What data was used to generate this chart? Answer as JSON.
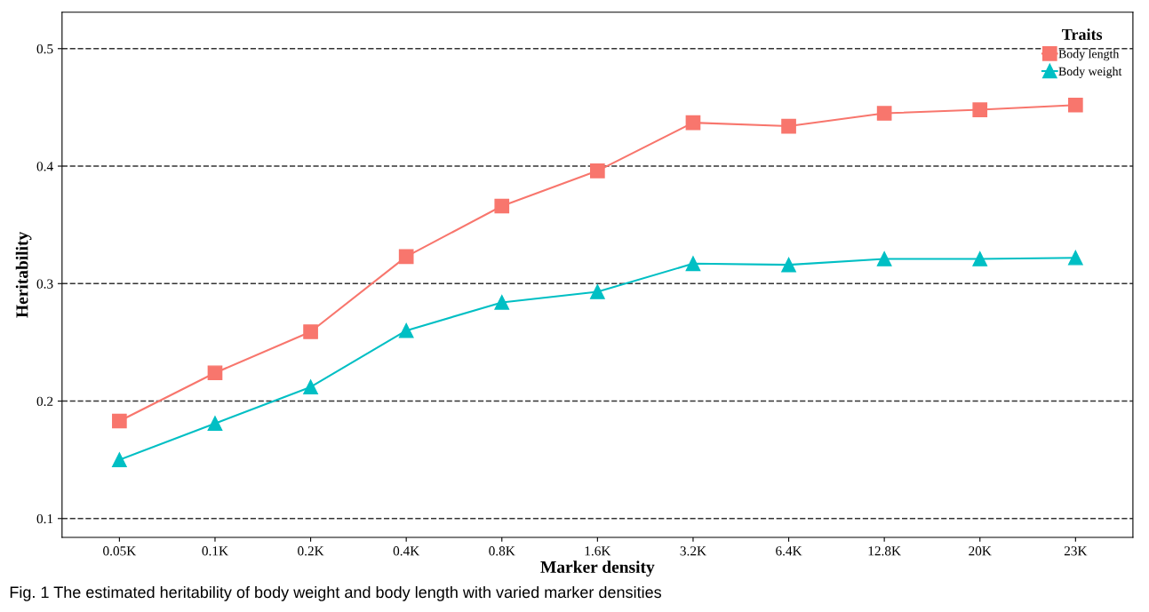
{
  "chart_data": {
    "type": "line",
    "xlabel": "Marker density",
    "ylabel": "Heritability",
    "legend_title": "Traits",
    "categories": [
      "0.05K",
      "0.1K",
      "0.2K",
      "0.4K",
      "0.8K",
      "1.6K",
      "3.2K",
      "6.4K",
      "12.8K",
      "20K",
      "23K"
    ],
    "series": [
      {
        "name": "Body length",
        "color": "#f8766d",
        "marker": "square",
        "values": [
          0.183,
          0.224,
          0.259,
          0.323,
          0.366,
          0.396,
          0.437,
          0.434,
          0.445,
          0.448,
          0.452
        ]
      },
      {
        "name": "Body weight",
        "color": "#00bfc4",
        "marker": "triangle",
        "values": [
          0.15,
          0.181,
          0.212,
          0.26,
          0.284,
          0.293,
          0.317,
          0.316,
          0.321,
          0.321,
          0.322
        ]
      }
    ],
    "ylim": [
      0.084,
      0.531
    ],
    "yticks": [
      0.1,
      0.2,
      0.3,
      0.4,
      0.5
    ],
    "grid": "y",
    "legend": "top right",
    "line_style": "solid",
    "annotations": [
      "Fig. 1 The estimated heritability of body weight and body length with varied marker densities"
    ]
  }
}
